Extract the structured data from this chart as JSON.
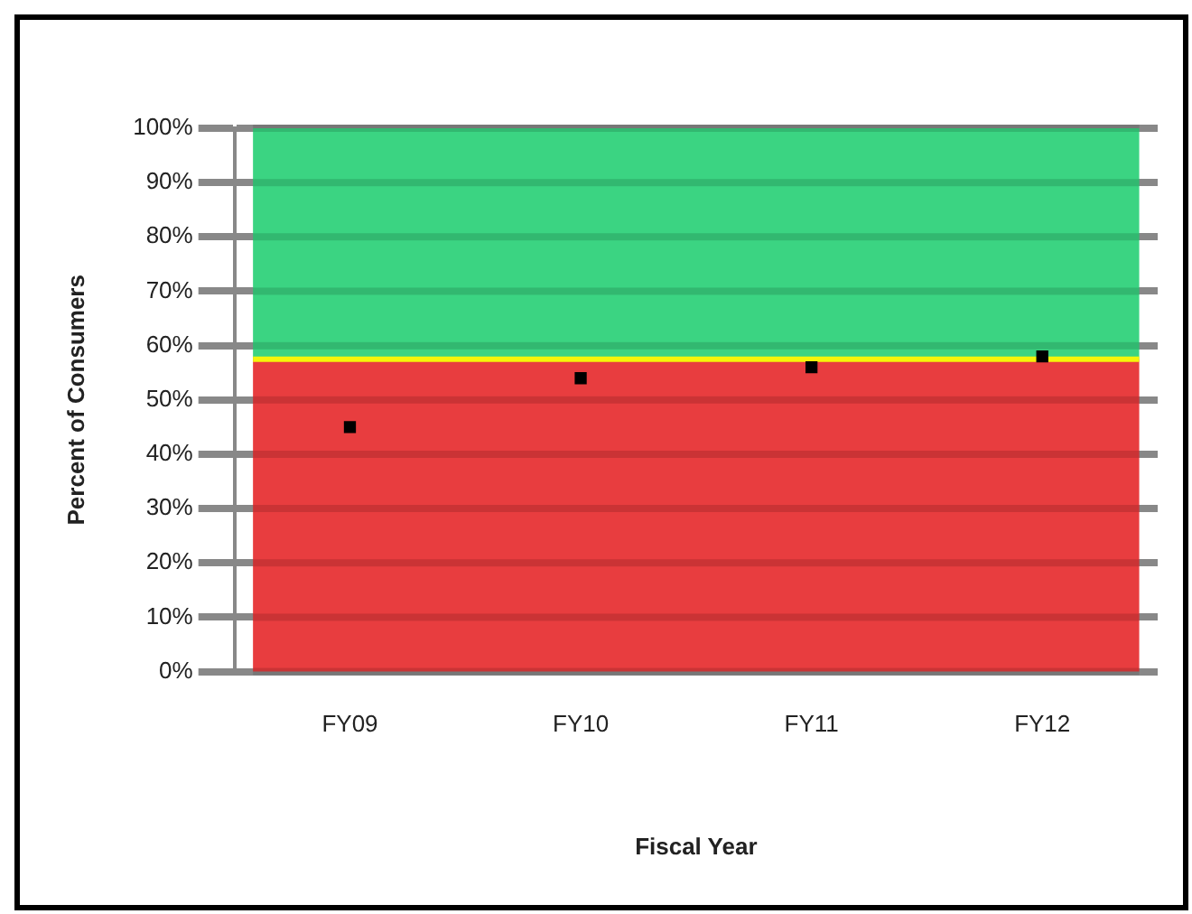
{
  "chart_data": {
    "type": "scatter",
    "xlabel": "Fiscal Year",
    "ylabel": "Percent of Consumers",
    "categories": [
      "FY09",
      "FY10",
      "FY11",
      "FY12"
    ],
    "series": [
      {
        "color": "#000000",
        "values": [
          45,
          54,
          56,
          58
        ]
      }
    ],
    "ylim": [
      0,
      100
    ],
    "yticks": [
      {
        "value": 0,
        "label": "0%"
      },
      {
        "value": 10,
        "label": "10%"
      },
      {
        "value": 20,
        "label": "20%"
      },
      {
        "value": 30,
        "label": "30%"
      },
      {
        "value": 40,
        "label": "40%"
      },
      {
        "value": 50,
        "label": "50%"
      },
      {
        "value": 60,
        "label": "60%"
      },
      {
        "value": 70,
        "label": "70%"
      },
      {
        "value": 80,
        "label": "80%"
      },
      {
        "value": 90,
        "label": "90%"
      },
      {
        "value": 100,
        "label": "100%"
      }
    ],
    "bands": [
      {
        "axis": "y",
        "from": 0,
        "to": 57.5,
        "color": "#e8393b"
      },
      {
        "axis": "y",
        "from": 57.5,
        "to": 100,
        "color": "#37d37f"
      }
    ],
    "ref_lines": [
      {
        "axis": "y",
        "value": 57.5,
        "color": "#f5f50a"
      }
    ],
    "grid": "y",
    "legend": false,
    "marker": "square"
  }
}
